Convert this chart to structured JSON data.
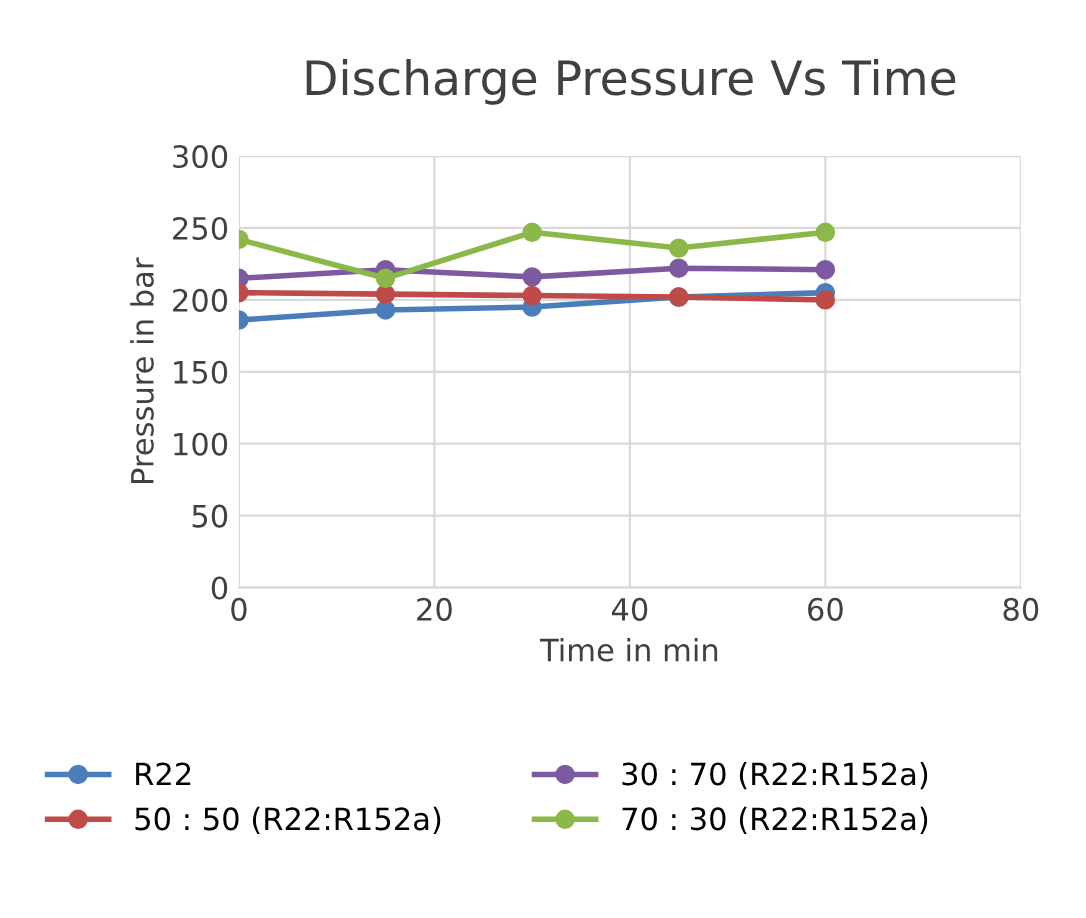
{
  "chart_data": {
    "type": "line",
    "title": "Discharge Pressure Vs Time",
    "xlabel": "Time in min",
    "ylabel": "Pressure in bar",
    "x": [
      0,
      15,
      30,
      45,
      60
    ],
    "series": [
      {
        "name": "R22",
        "color": "#4a7ebb",
        "values": [
          186,
          193,
          195,
          202,
          205
        ]
      },
      {
        "name": "30 : 70 (R22:R152a)",
        "color": "#7d5aa0",
        "values": [
          215,
          221,
          216,
          222,
          221
        ]
      },
      {
        "name": "50 : 50 (R22:R152a)",
        "color": "#be4b48",
        "values": [
          205,
          204,
          203,
          202,
          200
        ]
      },
      {
        "name": "70 : 30 (R22:R152a)",
        "color": "#8cb84a",
        "values": [
          242,
          215,
          247,
          236,
          247
        ]
      }
    ],
    "xlim": [
      0,
      80
    ],
    "xticks": [
      0,
      20,
      40,
      60,
      80
    ],
    "ylim": [
      0,
      300
    ],
    "yticks": [
      0,
      50,
      100,
      150,
      200,
      250,
      300
    ],
    "grid": true,
    "legend": "bottom",
    "marker": "circle",
    "line_style": "solid"
  }
}
